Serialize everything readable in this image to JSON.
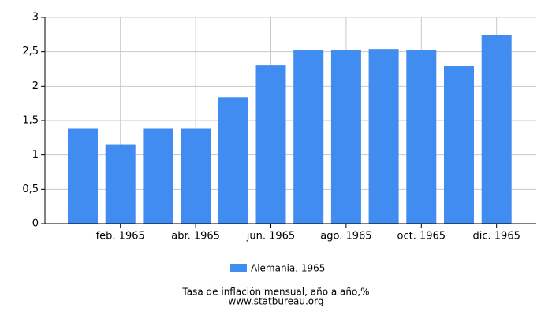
{
  "chart_data": {
    "type": "bar",
    "categories": [
      null,
      "feb. 1965",
      null,
      "abr. 1965",
      null,
      "jun. 1965",
      null,
      "ago. 1965",
      null,
      "oct. 1965",
      null,
      "dic. 1965"
    ],
    "series": [
      {
        "name": "Alemania, 1965",
        "color": "#418cf0",
        "values": [
          1.38,
          1.15,
          1.38,
          1.38,
          1.84,
          2.3,
          2.53,
          2.53,
          2.54,
          2.53,
          2.29,
          2.74
        ]
      }
    ],
    "ylim": [
      0,
      3
    ],
    "yticks": [
      0,
      {
        "value": 0.5,
        "label": "0,5"
      },
      1,
      {
        "value": 1.5,
        "label": "1,5"
      },
      2,
      {
        "value": 2.5,
        "label": "2,5"
      },
      3
    ],
    "grid": true,
    "xlabel": "Tasa de inflación mensual, año a año,%",
    "source": "www.statbureau.org"
  }
}
